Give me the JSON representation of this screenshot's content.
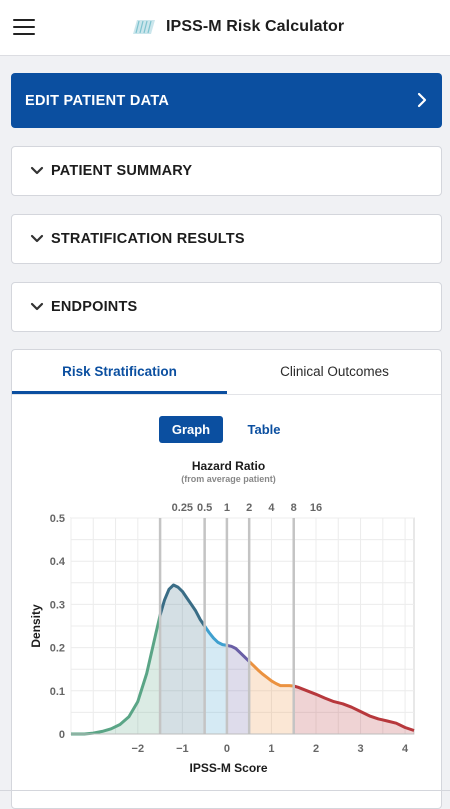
{
  "header": {
    "title": "IPSS-M Risk Calculator",
    "menu_icon": "hamburger-menu-icon",
    "logo_icon": "app-logo-icon"
  },
  "edit_button": {
    "label": "EDIT PATIENT DATA",
    "icon": "chevron-right-icon"
  },
  "sections": [
    {
      "label": "PATIENT SUMMARY",
      "icon": "chevron-down-icon"
    },
    {
      "label": "STRATIFICATION RESULTS",
      "icon": "chevron-down-icon"
    },
    {
      "label": "ENDPOINTS",
      "icon": "chevron-down-icon"
    }
  ],
  "tabs": [
    {
      "label": "Risk Stratification",
      "active": true
    },
    {
      "label": "Clinical Outcomes",
      "active": false
    }
  ],
  "view_toggle": {
    "graph": "Graph",
    "table": "Table",
    "selected": "Graph"
  },
  "colors": {
    "primary": "#0b4fa0",
    "segments": [
      "#5aa586",
      "#3a6d86",
      "#3fa0cf",
      "#6a5fa6",
      "#eb9240",
      "#b7383c"
    ]
  },
  "chart_data": {
    "type": "area",
    "xlabel": "IPSS-M Score",
    "ylabel": "Density",
    "top_axis_title": "Hazard Ratio",
    "top_axis_subtitle": "(from average patient)",
    "xlim": [
      -3.5,
      4.2
    ],
    "ylim": [
      0,
      0.5
    ],
    "x_ticks": [
      -2,
      -1,
      0,
      1,
      2,
      3,
      4
    ],
    "y_ticks": [
      "0",
      "0.1",
      "0.2",
      "0.3",
      "0.4",
      "0.5"
    ],
    "top_ticks": [
      {
        "label": "0.25",
        "hr": 0.25
      },
      {
        "label": "0.5",
        "hr": 0.5
      },
      {
        "label": "1",
        "hr": 1
      },
      {
        "label": "2",
        "hr": 2
      },
      {
        "label": "4",
        "hr": 4
      },
      {
        "label": "8",
        "hr": 8
      },
      {
        "label": "16",
        "hr": 16
      }
    ],
    "cutoffs": [
      -1.5,
      -0.5,
      0,
      0.5,
      1.5
    ],
    "x": [
      -3.5,
      -3.2,
      -3.0,
      -2.8,
      -2.6,
      -2.4,
      -2.2,
      -2.0,
      -1.8,
      -1.6,
      -1.5,
      -1.4,
      -1.3,
      -1.2,
      -1.1,
      -1.0,
      -0.9,
      -0.8,
      -0.7,
      -0.6,
      -0.5,
      -0.4,
      -0.3,
      -0.2,
      -0.1,
      0,
      0.1,
      0.2,
      0.3,
      0.4,
      0.5,
      0.6,
      0.7,
      0.8,
      0.9,
      1.0,
      1.1,
      1.2,
      1.3,
      1.4,
      1.5,
      1.6,
      1.8,
      2.0,
      2.2,
      2.4,
      2.6,
      2.8,
      3.0,
      3.2,
      3.4,
      3.6,
      3.8,
      4.0,
      4.2
    ],
    "y": [
      0,
      0,
      0.002,
      0.006,
      0.012,
      0.022,
      0.04,
      0.075,
      0.14,
      0.23,
      0.275,
      0.31,
      0.335,
      0.345,
      0.34,
      0.33,
      0.315,
      0.3,
      0.285,
      0.265,
      0.25,
      0.235,
      0.222,
      0.212,
      0.207,
      0.205,
      0.203,
      0.198,
      0.188,
      0.178,
      0.168,
      0.158,
      0.148,
      0.139,
      0.131,
      0.123,
      0.117,
      0.112,
      0.112,
      0.112,
      0.111,
      0.108,
      0.1,
      0.092,
      0.083,
      0.075,
      0.07,
      0.062,
      0.052,
      0.042,
      0.035,
      0.03,
      0.025,
      0.015,
      0.008
    ],
    "grid": true,
    "legend": "none"
  }
}
